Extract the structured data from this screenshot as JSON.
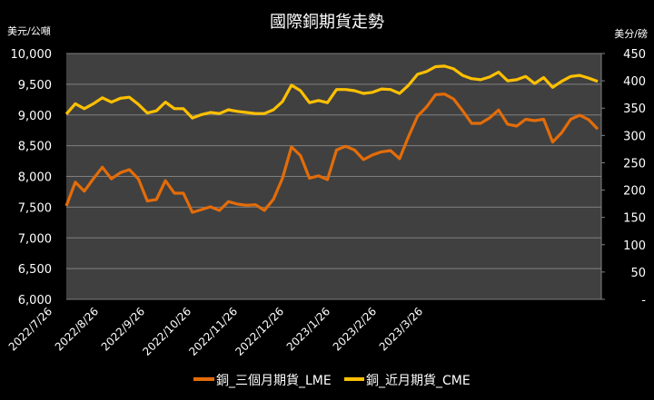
{
  "chart_data": {
    "type": "line",
    "title": "國際銅期貨走勢",
    "ylabel_left": "美元/公噸",
    "ylabel_right": "美分/磅",
    "ylim_left": [
      6000,
      10000
    ],
    "ylim_right": [
      0,
      450
    ],
    "yticks_left": [
      "6,000",
      "6,500",
      "7,000",
      "7,500",
      "8,000",
      "8,500",
      "9,000",
      "9,500",
      "10,000"
    ],
    "yticks_right": [
      "-",
      "50",
      "100",
      "150",
      "200",
      "250",
      "300",
      "350",
      "400",
      "450"
    ],
    "xtick_labels": [
      "2022/7/26",
      "2022/8/26",
      "2022/9/26",
      "2022/10/26",
      "2022/11/26",
      "2022/12/26",
      "2023/1/26",
      "2023/2/26",
      "2023/3/26"
    ],
    "grid": true,
    "legend_position": "bottom",
    "background": "#000000",
    "plot_background": "#404040",
    "series": [
      {
        "name": "銅_三個月期貨_LME",
        "axis": "left",
        "color": "#E36C09",
        "values": [
          7520,
          7905,
          7760,
          7960,
          8150,
          7960,
          8060,
          8110,
          7960,
          7600,
          7624,
          7930,
          7727,
          7727,
          7415,
          7460,
          7506,
          7447,
          7590,
          7550,
          7530,
          7540,
          7447,
          7630,
          7970,
          8480,
          8340,
          7970,
          8010,
          7948,
          8430,
          8490,
          8430,
          8273,
          8350,
          8400,
          8420,
          8290,
          8650,
          8980,
          9130,
          9330,
          9340,
          9260,
          9070,
          8864,
          8864,
          8952,
          9080,
          8850,
          8819,
          8930,
          8908,
          8930,
          8560,
          8710,
          8930,
          8996,
          8923,
          8770
        ]
      },
      {
        "name": "銅_近月期貨_CME",
        "axis": "right",
        "color": "#FFC000",
        "values": [
          339,
          358,
          349,
          358,
          369,
          361,
          368,
          370,
          357,
          341,
          345,
          361,
          349,
          349,
          332,
          338,
          342,
          340,
          347,
          344,
          342,
          340,
          340,
          347,
          362,
          392,
          382,
          360,
          364,
          360,
          384,
          384,
          382,
          377,
          379,
          385,
          384,
          377,
          392,
          412,
          417,
          426,
          427,
          422,
          410,
          404,
          402,
          407,
          416,
          400,
          402,
          408,
          395,
          406,
          388,
          399,
          408,
          410,
          405,
          399
        ]
      }
    ]
  }
}
